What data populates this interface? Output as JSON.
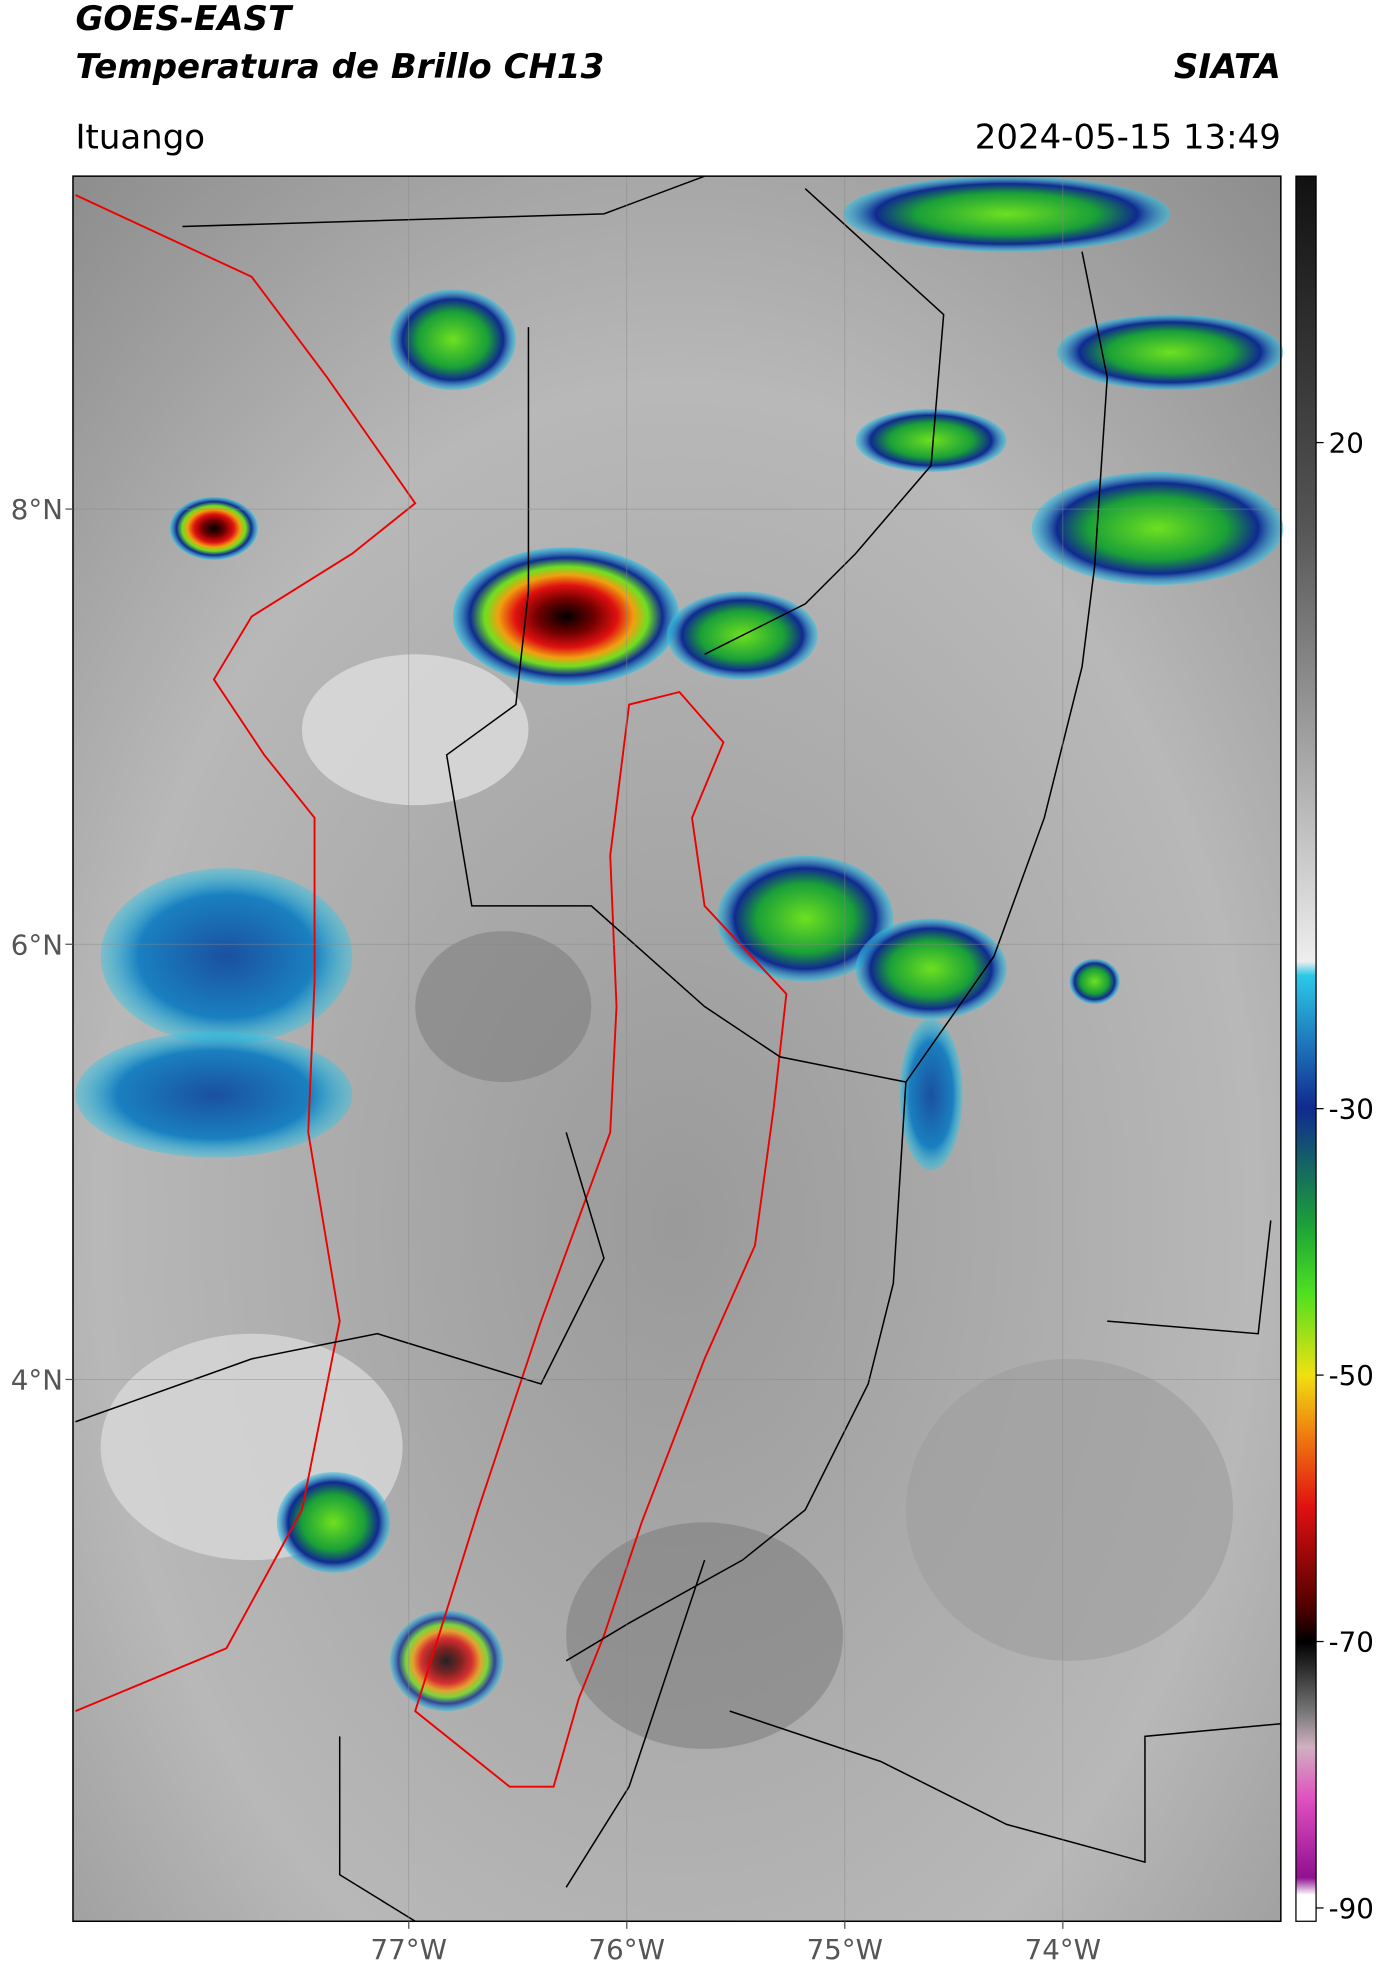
{
  "header": {
    "title": "GOES-EAST",
    "subtitle": "Temperatura de Brillo CH13",
    "agency": "SIATA",
    "region": "Ituango",
    "datetime": "2024-05-15 13:49"
  },
  "map": {
    "latlim": [
      1.51,
      9.53
    ],
    "lonlim": [
      -78.54,
      -73.0
    ],
    "lat_ticks": [
      {
        "value": 8,
        "label": "8°N"
      },
      {
        "value": 6,
        "label": "6°N"
      },
      {
        "value": 4,
        "label": "4°N"
      }
    ],
    "lon_ticks": [
      {
        "value": -77,
        "label": "77°W"
      },
      {
        "value": -76,
        "label": "76°W"
      },
      {
        "value": -75,
        "label": "75°W"
      },
      {
        "value": -74,
        "label": "74°W"
      }
    ],
    "grid": true
  },
  "colorbar": {
    "lim": [
      -91,
      40
    ],
    "ticks": [
      20,
      -30,
      -50,
      -70,
      -90
    ]
  }
}
